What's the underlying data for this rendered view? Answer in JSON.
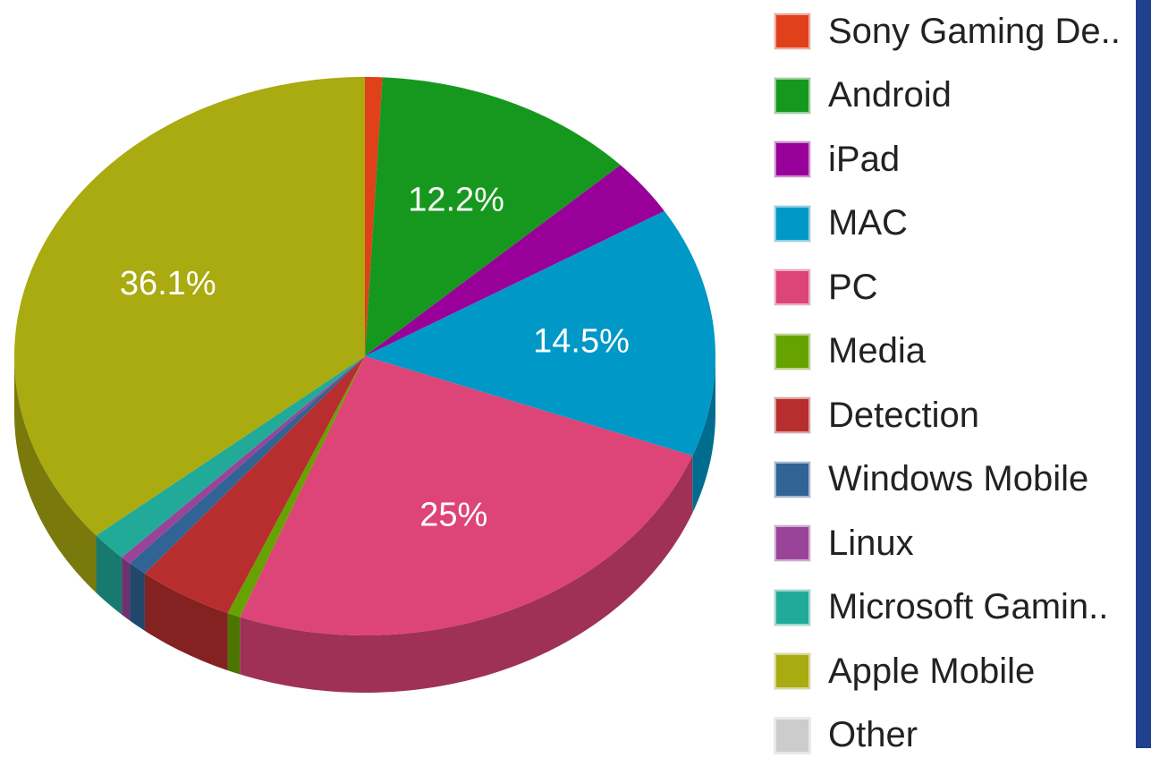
{
  "chart_data": {
    "type": "pie",
    "style": "3d",
    "legend_position": "right",
    "title": "",
    "colors": {
      "Sony Gaming De..": "#e0401a",
      "Android": "#16981e",
      "iPad": "#980099",
      "MAC": "#0098c6",
      "PC": "#dd4477",
      "Media": "#66a300",
      "Detection": "#b82e2e",
      "Windows Mobile": "#316395",
      "Linux": "#994499",
      "Microsoft Gamin..": "#22aa99",
      "Apple Mobile": "#aaaa11",
      "Other": "#cccccc"
    },
    "slices": [
      {
        "label": "Sony Gaming De..",
        "value": 0.8,
        "display": ""
      },
      {
        "label": "Android",
        "value": 12.2,
        "display": "12.2%"
      },
      {
        "label": "iPad",
        "value": 3.3,
        "display": ""
      },
      {
        "label": "MAC",
        "value": 14.5,
        "display": "14.5%"
      },
      {
        "label": "PC",
        "value": 25.0,
        "display": "25%"
      },
      {
        "label": "Media",
        "value": 0.6,
        "display": ""
      },
      {
        "label": "Detection",
        "value": 4.4,
        "display": ""
      },
      {
        "label": "Windows Mobile",
        "value": 0.9,
        "display": ""
      },
      {
        "label": "Linux",
        "value": 0.5,
        "display": ""
      },
      {
        "label": "Microsoft Gamin..",
        "value": 1.7,
        "display": ""
      },
      {
        "label": "Apple Mobile",
        "value": 36.1,
        "display": "36.1%"
      },
      {
        "label": "Other",
        "value": 0.0,
        "display": ""
      }
    ]
  }
}
